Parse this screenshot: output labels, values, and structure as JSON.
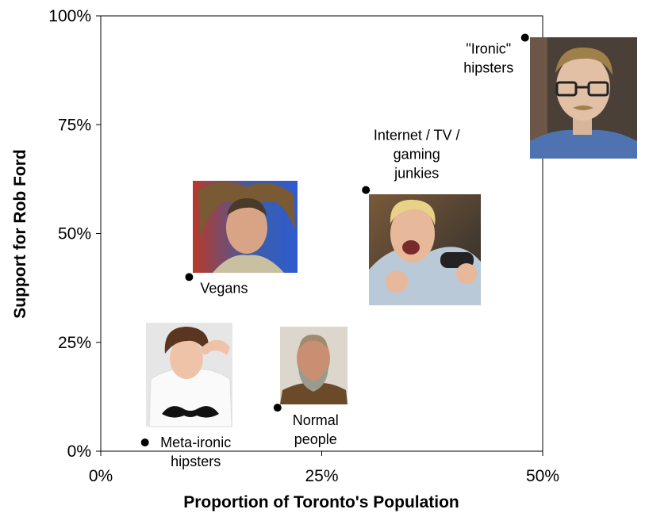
{
  "chart_data": {
    "type": "scatter",
    "xlabel": "Proportion of Toronto's Population",
    "ylabel": "Support for Rob Ford",
    "xlim": [
      0,
      50
    ],
    "ylim": [
      0,
      100
    ],
    "x_ticks": [
      "0%",
      "25%",
      "50%"
    ],
    "y_ticks": [
      "0%",
      "25%",
      "50%",
      "75%",
      "100%"
    ],
    "grid": false,
    "points": [
      {
        "label": "Meta-ironic hipsters",
        "label_lines": [
          "Meta-ironic",
          "hipsters"
        ],
        "x": 5,
        "y": 2,
        "photo": "young man with curly hair wearing a mustache t-shirt"
      },
      {
        "label": "Vegans",
        "label_lines": [
          "Vegans"
        ],
        "x": 10,
        "y": 40,
        "photo": "young man with dreadlocks"
      },
      {
        "label": "Normal people",
        "label_lines": [
          "Normal",
          "people"
        ],
        "x": 20,
        "y": 10,
        "photo": "middle-aged man with grey beard"
      },
      {
        "label": "Internet / TV / gaming junkies",
        "label_lines": [
          "Internet / TV /",
          "gaming",
          "junkies"
        ],
        "x": 30,
        "y": 60,
        "photo": "blond man shouting with game controller"
      },
      {
        "label": "\"Ironic\" hipsters",
        "label_lines": [
          "\"Ironic\"",
          "hipsters"
        ],
        "x": 48,
        "y": 95,
        "photo": "man with glasses and mustache"
      }
    ]
  }
}
